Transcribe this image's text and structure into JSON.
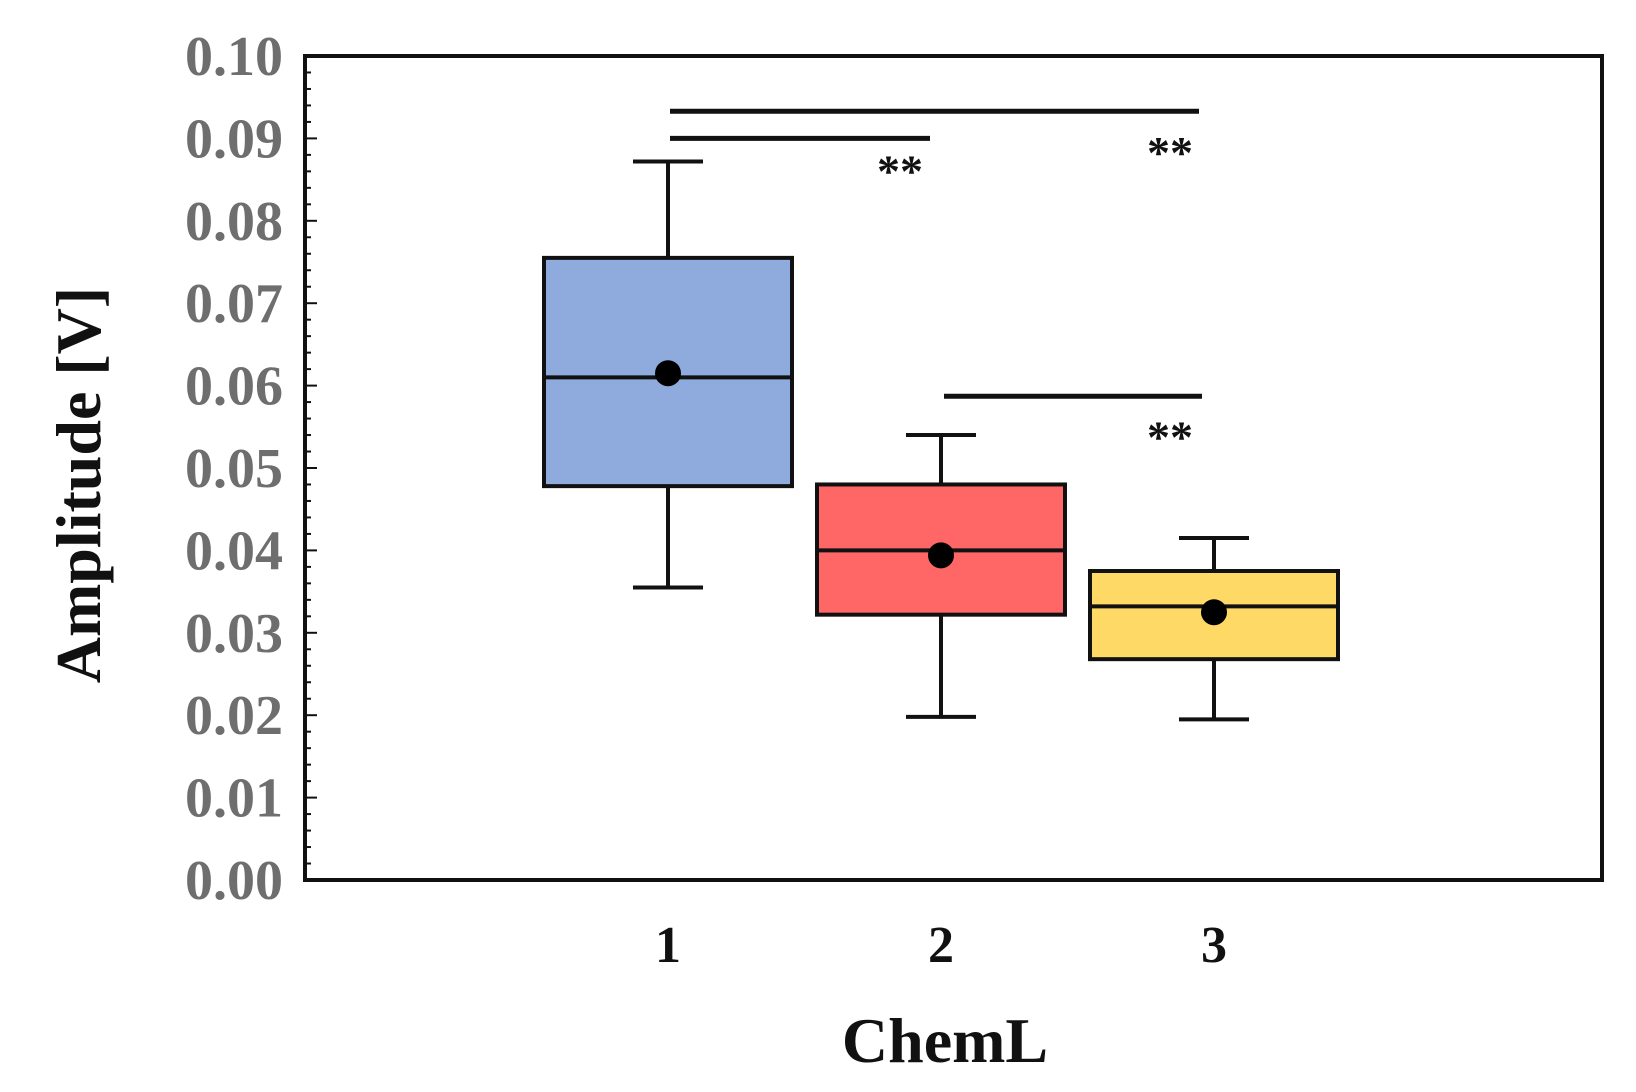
{
  "chart_data": {
    "type": "box",
    "xlabel": "ChemL",
    "ylabel": "Amplitude [V]",
    "ylim": [
      0,
      0.1
    ],
    "y_ticks": [
      "0.00",
      "0.01",
      "0.02",
      "0.03",
      "0.04",
      "0.05",
      "0.06",
      "0.07",
      "0.08",
      "0.09",
      "0.10"
    ],
    "categories": [
      "1",
      "2",
      "3"
    ],
    "grid": false,
    "boxes": [
      {
        "category": "1",
        "whisker_low": 0.0355,
        "q1": 0.0478,
        "median": 0.061,
        "q3": 0.0755,
        "whisker_high": 0.0872,
        "mean": 0.0615,
        "color": "#8faadc"
      },
      {
        "category": "2",
        "whisker_low": 0.0198,
        "q1": 0.0322,
        "median": 0.04,
        "q3": 0.048,
        "whisker_high": 0.054,
        "mean": 0.0394,
        "color": "#ff6666"
      },
      {
        "category": "3",
        "whisker_low": 0.0195,
        "q1": 0.0268,
        "median": 0.0332,
        "q3": 0.0375,
        "whisker_high": 0.0415,
        "mean": 0.0325,
        "color": "#ffd966"
      }
    ],
    "significance": [
      {
        "from": "1",
        "to": "2",
        "y": 0.09,
        "label": "**"
      },
      {
        "from": "1",
        "to": "3",
        "y": 0.0933,
        "label": "**"
      },
      {
        "from": "2",
        "to": "3",
        "y": 0.0587,
        "label": "**"
      }
    ]
  }
}
